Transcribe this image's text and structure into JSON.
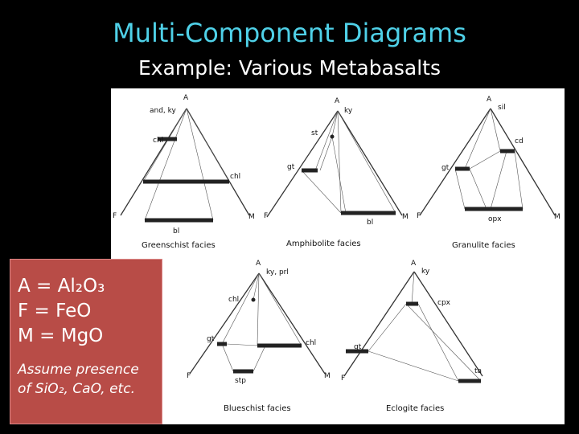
{
  "title": "Multi-Component Diagrams",
  "subtitle": "Example: Various Metabasalts",
  "diagrams": [
    {
      "facies": "Greenschist facies",
      "labels": [
        "A",
        "and, ky",
        "chl",
        "chl",
        "bl",
        "F",
        "M"
      ]
    },
    {
      "facies": "Amphibolite facies",
      "labels": [
        "A",
        "ky",
        "st",
        "gt",
        "bl",
        "F",
        "M"
      ]
    },
    {
      "facies": "Granulite facies",
      "labels": [
        "A",
        "sil",
        "cd",
        "gt",
        "opx",
        "F",
        "M"
      ]
    },
    {
      "facies": "Blueschist facies",
      "labels": [
        "A",
        "ky, prl",
        "chl",
        "gt",
        "chl",
        "stp",
        "F",
        "M"
      ]
    },
    {
      "facies": "Eclogite facies",
      "labels": [
        "A",
        "ky",
        "cpx",
        "gt",
        "ta",
        "F"
      ]
    }
  ],
  "legend": {
    "lines": [
      "A = Al₂O₃",
      "F = FeO",
      "M = MgO"
    ],
    "note": [
      "Assume presence",
      "of SiO₂, CaO, etc."
    ]
  }
}
